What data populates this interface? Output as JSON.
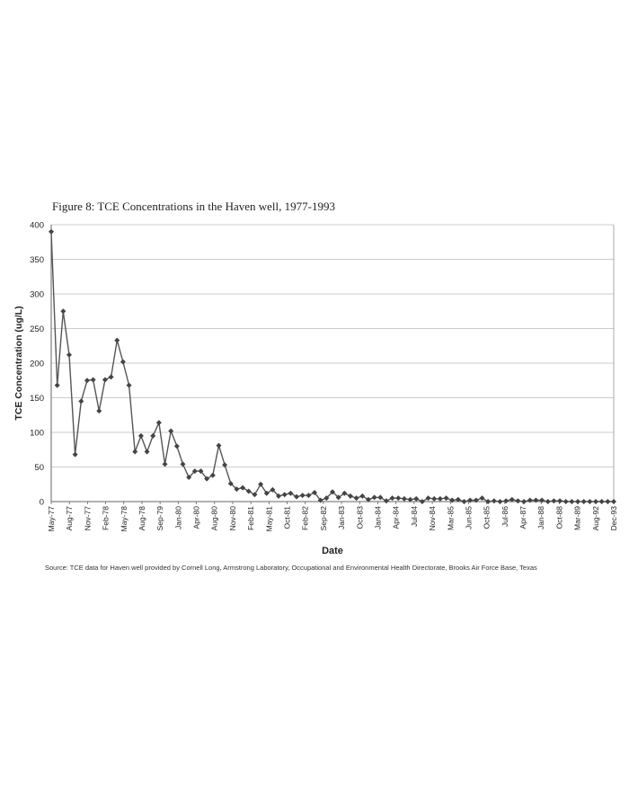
{
  "figure": {
    "title": "Figure 8: TCE Concentrations in the Haven well, 1977-1993",
    "source": "Source: TCE data for Haven well provided by Cornell Long, Armstrong Laboratory, Occupational and Environmental Health Directorate, Brooks Air Force Base, Texas"
  },
  "chart_data": {
    "type": "line",
    "title": "Figure 8: TCE Concentrations in the Haven well, 1977-1993",
    "xlabel": "Date",
    "ylabel": "TCE Concentration (ug/L)",
    "ylim": [
      0,
      400
    ],
    "yticks": [
      0,
      50,
      100,
      150,
      200,
      250,
      300,
      350,
      400
    ],
    "grid": "horizontal",
    "legend": "none",
    "line_color": "#555555",
    "marker": "diamond",
    "xtick_labels": [
      "May-77",
      "Aug-77",
      "Nov-77",
      "Feb-78",
      "May-78",
      "Aug-78",
      "Sep-79",
      "Jan-80",
      "Apr-80",
      "Aug-80",
      "Nov-80",
      "Feb-81",
      "May-81",
      "Oct-81",
      "Feb-82",
      "Sep-82",
      "Jan-83",
      "Oct-83",
      "Jan-84",
      "Apr-84",
      "Jul-84",
      "Nov-84",
      "Mar-85",
      "Jun-85",
      "Oct-85",
      "Jul-86",
      "Apr-87",
      "Jan-88",
      "Oct-88",
      "Mar-89",
      "Aug-92",
      "Dec-93"
    ],
    "series": [
      {
        "values": [
          390,
          168,
          275,
          212,
          68,
          145,
          175,
          176,
          131,
          176,
          180,
          233,
          202,
          168,
          72,
          95,
          72,
          95,
          114,
          54,
          102,
          80,
          54,
          35,
          44,
          44,
          33,
          38,
          81,
          53,
          26,
          18,
          20,
          15,
          10,
          25,
          12,
          17,
          8,
          10,
          12,
          7,
          9,
          9,
          13,
          2,
          5,
          14,
          6,
          12,
          8,
          5,
          8,
          3,
          6,
          6,
          1,
          5,
          5,
          4,
          3,
          4,
          0,
          5,
          4,
          4,
          5,
          2,
          3,
          0,
          2,
          2,
          5,
          0,
          1,
          0,
          1,
          3,
          1,
          0,
          2,
          2,
          2,
          0,
          1,
          1,
          0,
          0,
          0,
          0,
          0,
          0,
          0,
          0,
          0
        ]
      }
    ]
  }
}
